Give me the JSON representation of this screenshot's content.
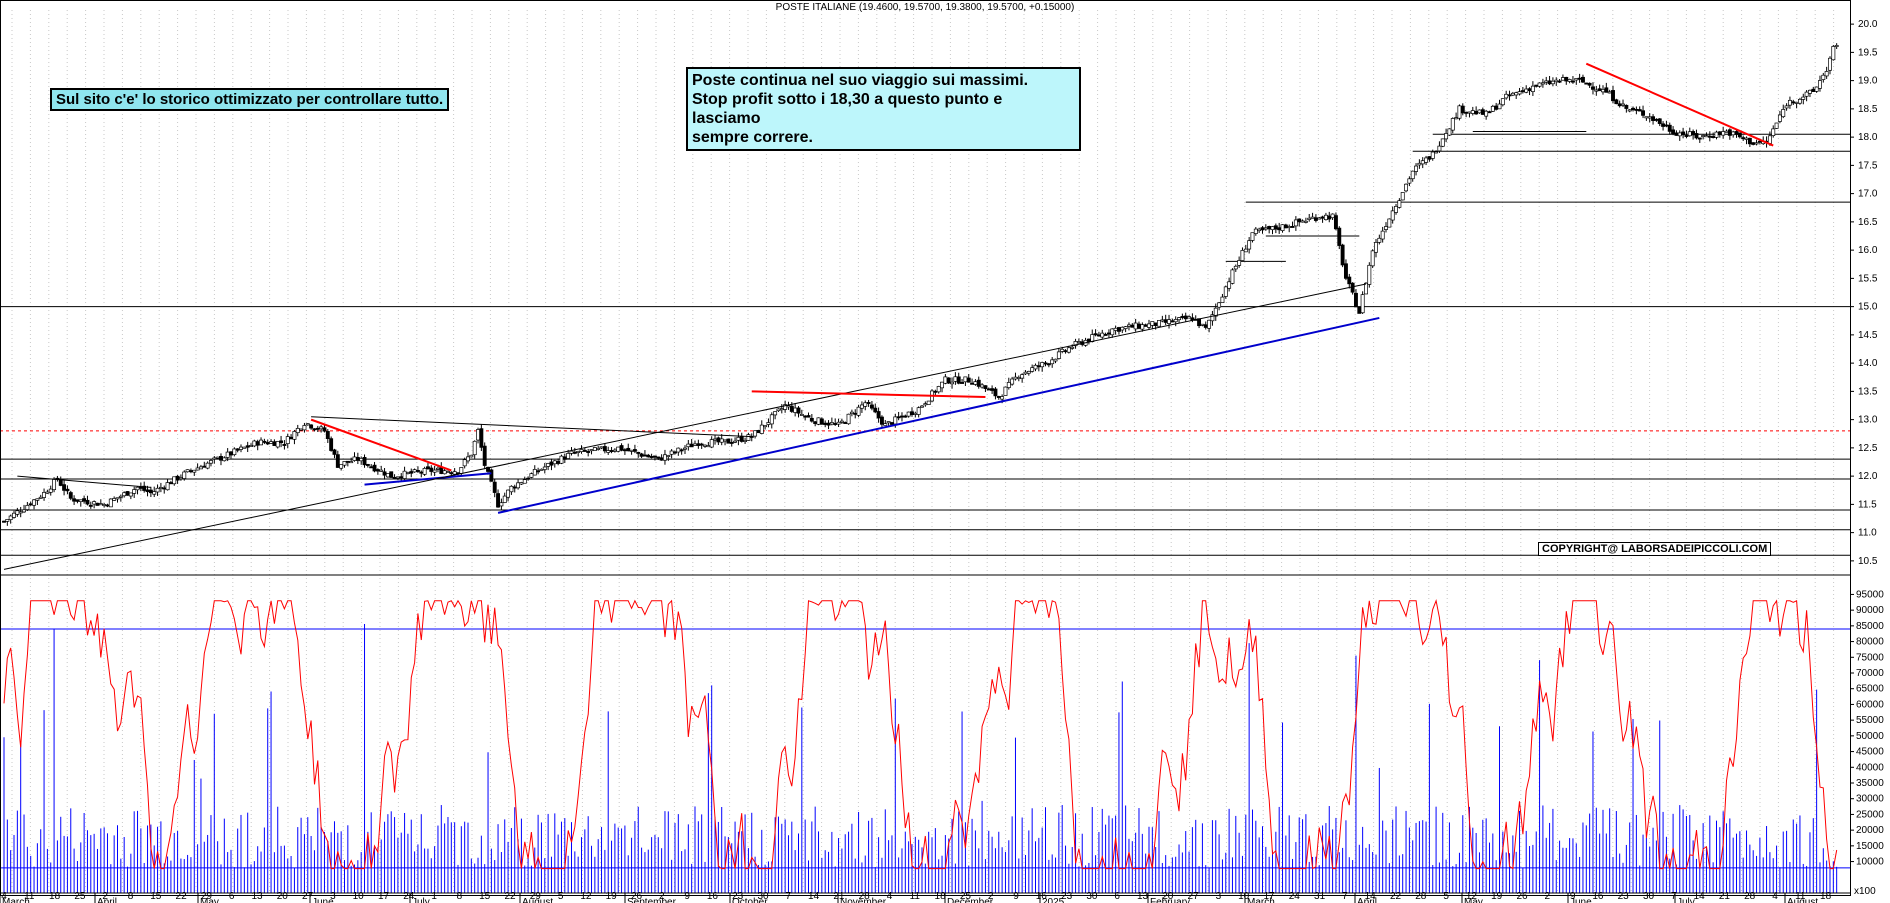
{
  "header": "POSTE ITALIANE (19.4600, 19.5700, 19.3800, 19.5700, +0.15000)",
  "notes": {
    "left": "Sul sito c'e' lo storico ottimizzato per controllare tutto.",
    "center_line1": "Poste continua nel suo viaggio sui massimi.",
    "center_line2": "Stop profit sotto i 18,30 a questo punto e lasciamo",
    "center_line3": "sempre correre.",
    "copyright": "COPYRIGHT@ LABORSADEIPICCOLI.COM"
  },
  "colors": {
    "background": "#ffffff",
    "price": "#000000",
    "trend_support": "#0000cc",
    "resistance": "#ff0000",
    "volume": "#0000ff",
    "oscillator": "#ff0000"
  },
  "chart_data": [
    {
      "type": "candlestick",
      "title": "POSTE ITALIANE",
      "ylim": [
        10.25,
        20.25
      ],
      "y_ticks": [
        10.5,
        11.0,
        11.5,
        12.0,
        12.5,
        13.0,
        13.5,
        14.0,
        14.5,
        15.0,
        15.5,
        16.0,
        16.5,
        17.0,
        17.5,
        18.0,
        18.5,
        19.0,
        19.5,
        20.0
      ],
      "close_anchors": [
        [
          0,
          11.2
        ],
        [
          12,
          11.7
        ],
        [
          16,
          11.95
        ],
        [
          20,
          11.6
        ],
        [
          30,
          11.5
        ],
        [
          40,
          11.8
        ],
        [
          44,
          11.7
        ],
        [
          56,
          12.1
        ],
        [
          64,
          12.3
        ],
        [
          76,
          12.6
        ],
        [
          84,
          12.6
        ],
        [
          90,
          12.95
        ],
        [
          96,
          12.8
        ],
        [
          100,
          12.2
        ],
        [
          106,
          12.3
        ],
        [
          116,
          12.0
        ],
        [
          128,
          12.1
        ],
        [
          136,
          12.1
        ],
        [
          140,
          12.4
        ],
        [
          142,
          12.8
        ],
        [
          144,
          12.2
        ],
        [
          148,
          11.5
        ],
        [
          152,
          11.8
        ],
        [
          160,
          12.1
        ],
        [
          170,
          12.4
        ],
        [
          184,
          12.5
        ],
        [
          196,
          12.3
        ],
        [
          208,
          12.6
        ],
        [
          216,
          12.6
        ],
        [
          224,
          12.7
        ],
        [
          234,
          13.25
        ],
        [
          242,
          13.0
        ],
        [
          250,
          12.9
        ],
        [
          258,
          13.3
        ],
        [
          264,
          12.9
        ],
        [
          274,
          13.2
        ],
        [
          282,
          13.7
        ],
        [
          290,
          13.7
        ],
        [
          298,
          13.4
        ],
        [
          304,
          13.8
        ],
        [
          312,
          14.0
        ],
        [
          320,
          14.3
        ],
        [
          332,
          14.6
        ],
        [
          346,
          14.7
        ],
        [
          356,
          14.8
        ],
        [
          360,
          14.6
        ],
        [
          368,
          15.6
        ],
        [
          374,
          16.3
        ],
        [
          382,
          16.4
        ],
        [
          394,
          16.6
        ],
        [
          398,
          16.6
        ],
        [
          402,
          15.5
        ],
        [
          406,
          14.9
        ],
        [
          410,
          16.0
        ],
        [
          416,
          16.7
        ],
        [
          422,
          17.4
        ],
        [
          428,
          17.7
        ],
        [
          436,
          18.5
        ],
        [
          444,
          18.4
        ],
        [
          450,
          18.7
        ],
        [
          458,
          18.9
        ],
        [
          466,
          19.0
        ],
        [
          472,
          19.0
        ],
        [
          480,
          18.8
        ],
        [
          486,
          18.5
        ],
        [
          492,
          18.4
        ],
        [
          500,
          18.1
        ],
        [
          508,
          18.0
        ],
        [
          516,
          18.1
        ],
        [
          524,
          17.9
        ],
        [
          528,
          17.9
        ],
        [
          534,
          18.6
        ],
        [
          542,
          18.8
        ],
        [
          546,
          19.2
        ],
        [
          548,
          19.57
        ]
      ],
      "horizontal_levels": [
        10.6,
        11.05,
        11.4,
        11.95,
        12.3,
        15.0,
        16.85,
        17.75,
        18.05
      ],
      "dashed_level": 12.8,
      "trendlines": [
        {
          "color": "blue",
          "from": [
            148,
            11.35
          ],
          "to": [
            412,
            14.8
          ]
        },
        {
          "color": "blue",
          "from": [
            108,
            11.85
          ],
          "to": [
            146,
            12.05
          ]
        },
        {
          "color": "black",
          "from": [
            0,
            10.35
          ],
          "to": [
            408,
            15.4
          ]
        },
        {
          "color": "black",
          "from": [
            4,
            12.0
          ],
          "to": [
            44,
            11.8
          ]
        },
        {
          "color": "black",
          "from": [
            92,
            13.05
          ],
          "to": [
            224,
            12.7
          ]
        },
        {
          "color": "red",
          "from": [
            92,
            13.0
          ],
          "to": [
            134,
            12.1
          ]
        },
        {
          "color": "red",
          "from": [
            224,
            13.5
          ],
          "to": [
            294,
            13.4
          ]
        },
        {
          "color": "red",
          "from": [
            474,
            19.3
          ],
          "to": [
            530,
            17.85
          ]
        }
      ]
    },
    {
      "type": "bar",
      "series": [
        {
          "values": "volume"
        }
      ],
      "ylim": [
        0,
        98000
      ],
      "y_ticks": [
        10000,
        15000,
        20000,
        25000,
        30000,
        35000,
        40000,
        45000,
        50000,
        55000,
        60000,
        65000,
        70000,
        75000,
        80000,
        85000,
        90000,
        95000
      ],
      "y_tick_suffix": "x100",
      "reference_levels": [
        84000,
        8000
      ]
    },
    {
      "type": "line",
      "series": [
        {
          "values": "oscillator"
        }
      ]
    }
  ],
  "x_axis": {
    "day_labels": [
      "4",
      "11",
      "18",
      "25",
      "2",
      "8",
      "15",
      "22",
      "29",
      "6",
      "13",
      "20",
      "27",
      "3",
      "10",
      "17",
      "24",
      "1",
      "8",
      "15",
      "22",
      "29",
      "5",
      "12",
      "19",
      "26",
      "2",
      "9",
      "16",
      "23",
      "30",
      "7",
      "14",
      "21",
      "28",
      "4",
      "11",
      "18",
      "25",
      "2",
      "9",
      "16",
      "23",
      "30",
      "6",
      "13",
      "20",
      "27",
      "3",
      "10",
      "17",
      "24",
      "31",
      "7",
      "14",
      "22",
      "28",
      "5",
      "12",
      "19",
      "26",
      "2",
      "9",
      "16",
      "23",
      "30",
      "7",
      "14",
      "21",
      "28",
      "4",
      "11",
      "18"
    ],
    "months": [
      "March",
      "April",
      "May",
      "June",
      "July",
      "August",
      "September",
      "October",
      "November",
      "December",
      "2025",
      "February",
      "March",
      "April",
      "May",
      "June",
      "July",
      "August"
    ]
  }
}
